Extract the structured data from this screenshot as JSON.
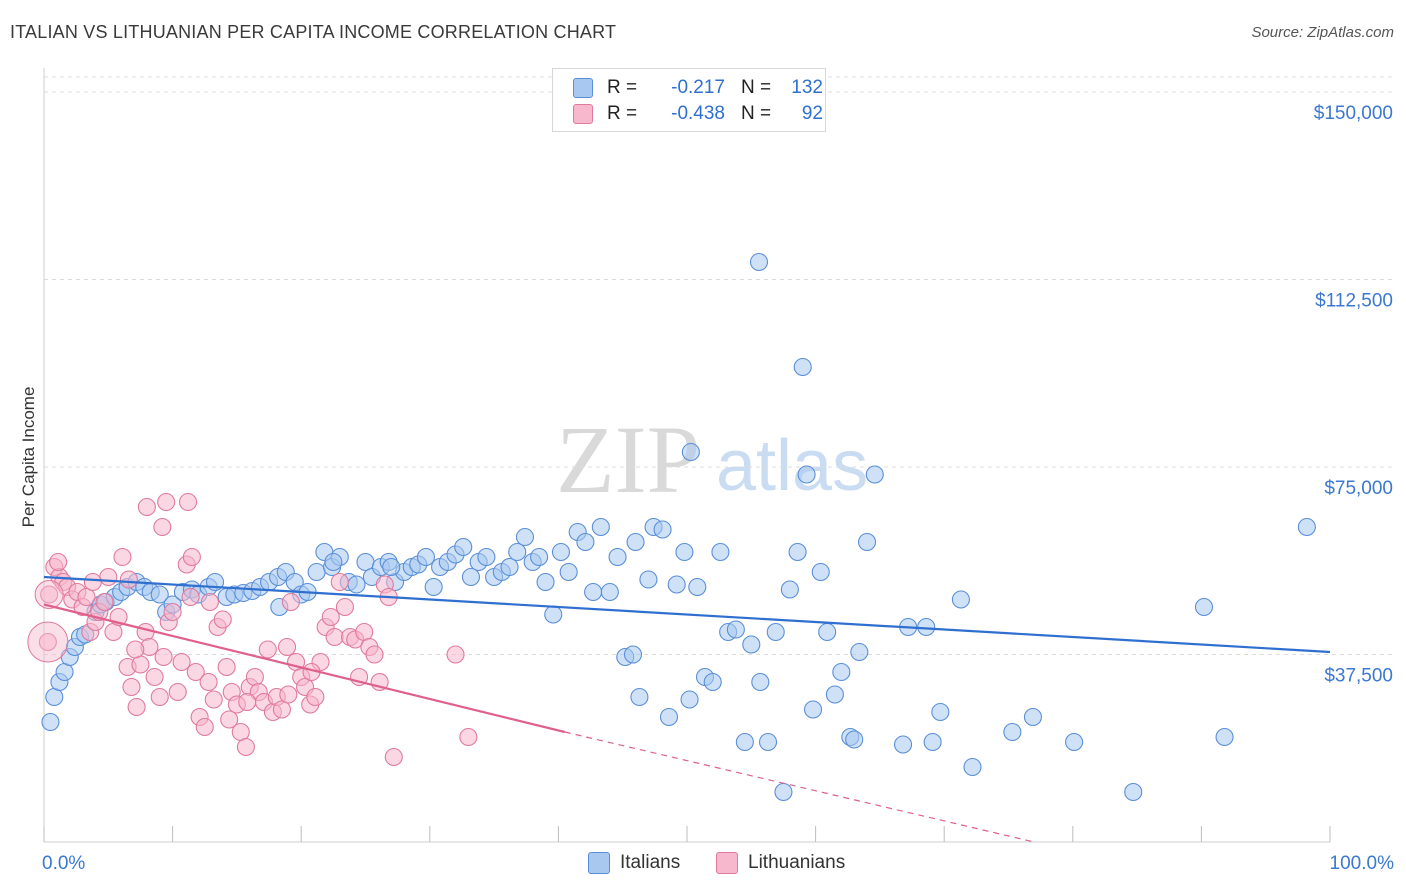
{
  "header": {
    "title": "ITALIAN VS LITHUANIAN PER CAPITA INCOME CORRELATION CHART",
    "source": "Source: ZipAtlas.com"
  },
  "legend": {
    "r_label": "R =",
    "n_label": "N =",
    "rows": [
      {
        "r": "-0.217",
        "n": "132",
        "fill": "#a8c8f0",
        "stroke": "#5a8fd8"
      },
      {
        "r": "-0.438",
        "n": "92",
        "fill": "#f7b7cc",
        "stroke": "#e07a9c"
      }
    ]
  },
  "bottom_legend": {
    "items": [
      {
        "label": "Italians",
        "fill": "#a8c8f0",
        "stroke": "#5a8fd8"
      },
      {
        "label": "Lithuanians",
        "fill": "#f7b7cc",
        "stroke": "#e07a9c"
      }
    ]
  },
  "chart_data": {
    "type": "scatter",
    "ylabel": "Per Capita Income",
    "xlim": [
      0,
      100
    ],
    "ylim": [
      0,
      153000
    ],
    "x_tick_labels": [
      "0.0%",
      "100.0%"
    ],
    "y_ticks": [
      {
        "value": 150000,
        "label": "$150,000"
      },
      {
        "value": 112500,
        "label": "$112,500"
      },
      {
        "value": 75000,
        "label": "$75,000"
      },
      {
        "value": 37500,
        "label": "$37,500"
      }
    ],
    "grid": true,
    "legend_position": "top-center",
    "watermark": {
      "zip": "ZIP",
      "atlas": "atlas"
    },
    "series": [
      {
        "name": "Italians",
        "color": "#5a8fd8",
        "fill": "#a8c8f0",
        "trend": {
          "x": [
            0,
            100
          ],
          "y": [
            53000,
            38000
          ],
          "dashed_from": null
        },
        "points": [
          [
            0.5,
            24000
          ],
          [
            0.8,
            29000
          ],
          [
            1.2,
            32000
          ],
          [
            1.6,
            34000
          ],
          [
            2.0,
            37000
          ],
          [
            2.4,
            39000
          ],
          [
            2.8,
            41000
          ],
          [
            3.2,
            41500
          ],
          [
            4.0,
            46000
          ],
          [
            4.4,
            47500
          ],
          [
            4.8,
            48000
          ],
          [
            5.5,
            49000
          ],
          [
            6.0,
            50000
          ],
          [
            6.5,
            51000
          ],
          [
            7.2,
            52000
          ],
          [
            7.8,
            51000
          ],
          [
            8.3,
            50000
          ],
          [
            9.0,
            49500
          ],
          [
            9.5,
            46000
          ],
          [
            10.0,
            47500
          ],
          [
            10.8,
            50000
          ],
          [
            11.5,
            50500
          ],
          [
            12.0,
            49500
          ],
          [
            12.8,
            51000
          ],
          [
            13.3,
            52000
          ],
          [
            14.2,
            49000
          ],
          [
            14.8,
            49500
          ],
          [
            15.5,
            49800
          ],
          [
            16.2,
            50200
          ],
          [
            16.8,
            51000
          ],
          [
            17.5,
            52000
          ],
          [
            18.2,
            53000
          ],
          [
            18.8,
            54000
          ],
          [
            18.3,
            47000
          ],
          [
            19.5,
            52000
          ],
          [
            20.0,
            49500
          ],
          [
            20.5,
            50000
          ],
          [
            21.2,
            54000
          ],
          [
            21.8,
            58000
          ],
          [
            22.4,
            55000
          ],
          [
            23.0,
            57000
          ],
          [
            23.7,
            52000
          ],
          [
            24.3,
            51500
          ],
          [
            25.0,
            56000
          ],
          [
            25.5,
            53000
          ],
          [
            26.2,
            55000
          ],
          [
            26.8,
            56000
          ],
          [
            27.3,
            52000
          ],
          [
            28.0,
            54000
          ],
          [
            28.6,
            55000
          ],
          [
            29.1,
            55500
          ],
          [
            29.7,
            57000
          ],
          [
            30.3,
            51000
          ],
          [
            30.8,
            55000
          ],
          [
            31.4,
            56000
          ],
          [
            32.0,
            57500
          ],
          [
            32.6,
            59000
          ],
          [
            33.2,
            53000
          ],
          [
            33.8,
            56000
          ],
          [
            34.4,
            57000
          ],
          [
            35.0,
            53000
          ],
          [
            35.6,
            54000
          ],
          [
            36.2,
            55000
          ],
          [
            36.8,
            58000
          ],
          [
            37.4,
            61000
          ],
          [
            38.0,
            56000
          ],
          [
            38.5,
            57000
          ],
          [
            39.0,
            52000
          ],
          [
            39.6,
            45500
          ],
          [
            40.2,
            58000
          ],
          [
            40.8,
            54000
          ],
          [
            41.5,
            62000
          ],
          [
            42.1,
            60000
          ],
          [
            42.7,
            50000
          ],
          [
            43.3,
            63000
          ],
          [
            44.0,
            50000
          ],
          [
            44.6,
            57000
          ],
          [
            45.2,
            37000
          ],
          [
            45.8,
            37500
          ],
          [
            46.3,
            29000
          ],
          [
            47.0,
            52500
          ],
          [
            47.4,
            63000
          ],
          [
            48.1,
            62500
          ],
          [
            48.6,
            25000
          ],
          [
            49.2,
            51500
          ],
          [
            49.8,
            58000
          ],
          [
            50.2,
            28500
          ],
          [
            50.8,
            51000
          ],
          [
            51.4,
            33000
          ],
          [
            52.0,
            32000
          ],
          [
            52.6,
            58000
          ],
          [
            53.2,
            42000
          ],
          [
            53.8,
            42500
          ],
          [
            54.5,
            20000
          ],
          [
            55.0,
            39500
          ],
          [
            50.3,
            78000
          ],
          [
            55.7,
            32000
          ],
          [
            56.3,
            20000
          ],
          [
            56.9,
            42000
          ],
          [
            57.5,
            10000
          ],
          [
            58.0,
            50500
          ],
          [
            58.6,
            58000
          ],
          [
            59.0,
            95000
          ],
          [
            59.3,
            73500
          ],
          [
            59.8,
            26500
          ],
          [
            60.4,
            54000
          ],
          [
            60.9,
            42000
          ],
          [
            61.5,
            29500
          ],
          [
            62.0,
            34000
          ],
          [
            62.7,
            21000
          ],
          [
            63.4,
            38000
          ],
          [
            64.0,
            60000
          ],
          [
            64.6,
            73500
          ],
          [
            63.0,
            20500
          ],
          [
            55.6,
            116000
          ],
          [
            66.8,
            19500
          ],
          [
            67.2,
            43000
          ],
          [
            68.6,
            43000
          ],
          [
            69.1,
            20000
          ],
          [
            69.7,
            26000
          ],
          [
            71.3,
            48500
          ],
          [
            72.2,
            15000
          ],
          [
            75.3,
            22000
          ],
          [
            76.9,
            25000
          ],
          [
            80.1,
            20000
          ],
          [
            84.7,
            10000
          ],
          [
            90.2,
            47000
          ],
          [
            91.8,
            21000
          ],
          [
            98.2,
            63000
          ],
          [
            22.5,
            56000
          ],
          [
            27.0,
            55000
          ],
          [
            46.0,
            60000
          ]
        ]
      },
      {
        "name": "Lithuanians",
        "color": "#e07a9c",
        "fill": "#f7b7cc",
        "trend": {
          "x": [
            0,
            40.5
          ],
          "y": [
            47500,
            22000
          ],
          "dashed_from": 40.5,
          "dashed_to": [
            77,
            0
          ]
        },
        "points": [
          [
            0.3,
            40000
          ],
          [
            0.4,
            49500
          ],
          [
            0.8,
            55000
          ],
          [
            1.2,
            53000
          ],
          [
            1.5,
            52000
          ],
          [
            1.8,
            51000
          ],
          [
            2.2,
            48500
          ],
          [
            2.6,
            50000
          ],
          [
            3.0,
            47000
          ],
          [
            3.3,
            49000
          ],
          [
            3.6,
            42000
          ],
          [
            4.0,
            44000
          ],
          [
            4.3,
            46000
          ],
          [
            4.7,
            48000
          ],
          [
            5.0,
            53000
          ],
          [
            5.4,
            42000
          ],
          [
            5.8,
            45000
          ],
          [
            6.1,
            57000
          ],
          [
            6.5,
            35000
          ],
          [
            6.8,
            31000
          ],
          [
            7.2,
            27000
          ],
          [
            7.5,
            35500
          ],
          [
            7.9,
            42000
          ],
          [
            8.2,
            39000
          ],
          [
            8.6,
            33000
          ],
          [
            9.0,
            29000
          ],
          [
            9.3,
            37000
          ],
          [
            9.7,
            44000
          ],
          [
            10.0,
            46000
          ],
          [
            10.4,
            30000
          ],
          [
            10.7,
            36000
          ],
          [
            11.1,
            55500
          ],
          [
            11.4,
            49000
          ],
          [
            11.8,
            34000
          ],
          [
            12.1,
            25000
          ],
          [
            12.5,
            23000
          ],
          [
            12.8,
            32000
          ],
          [
            13.2,
            28500
          ],
          [
            13.5,
            43000
          ],
          [
            13.9,
            44500
          ],
          [
            14.2,
            35000
          ],
          [
            14.6,
            30000
          ],
          [
            15.0,
            27500
          ],
          [
            15.3,
            22000
          ],
          [
            15.7,
            19000
          ],
          [
            16.0,
            31000
          ],
          [
            16.4,
            33000
          ],
          [
            16.7,
            30000
          ],
          [
            17.1,
            28000
          ],
          [
            17.4,
            38500
          ],
          [
            17.8,
            26000
          ],
          [
            18.1,
            29000
          ],
          [
            18.5,
            26500
          ],
          [
            18.9,
            39000
          ],
          [
            19.2,
            48000
          ],
          [
            19.6,
            36000
          ],
          [
            20.0,
            33000
          ],
          [
            20.3,
            31000
          ],
          [
            20.7,
            27500
          ],
          [
            21.1,
            29000
          ],
          [
            21.5,
            36000
          ],
          [
            21.9,
            43000
          ],
          [
            22.3,
            45000
          ],
          [
            22.6,
            41000
          ],
          [
            23.0,
            52000
          ],
          [
            23.4,
            47000
          ],
          [
            23.8,
            41000
          ],
          [
            24.2,
            40500
          ],
          [
            24.5,
            33000
          ],
          [
            24.9,
            42000
          ],
          [
            25.3,
            39000
          ],
          [
            25.7,
            37500
          ],
          [
            26.1,
            32000
          ],
          [
            26.5,
            51500
          ],
          [
            26.8,
            49000
          ],
          [
            27.2,
            17000
          ],
          [
            32.0,
            37500
          ],
          [
            33.0,
            21000
          ],
          [
            8.0,
            67000
          ],
          [
            9.2,
            63000
          ],
          [
            9.5,
            68000
          ],
          [
            11.2,
            68000
          ],
          [
            11.5,
            57000
          ],
          [
            3.8,
            52000
          ],
          [
            1.1,
            56000
          ],
          [
            6.6,
            52500
          ],
          [
            7.1,
            38500
          ],
          [
            12.9,
            48000
          ],
          [
            14.4,
            24500
          ],
          [
            15.8,
            28000
          ],
          [
            19.0,
            29500
          ],
          [
            20.8,
            34000
          ]
        ]
      }
    ]
  }
}
